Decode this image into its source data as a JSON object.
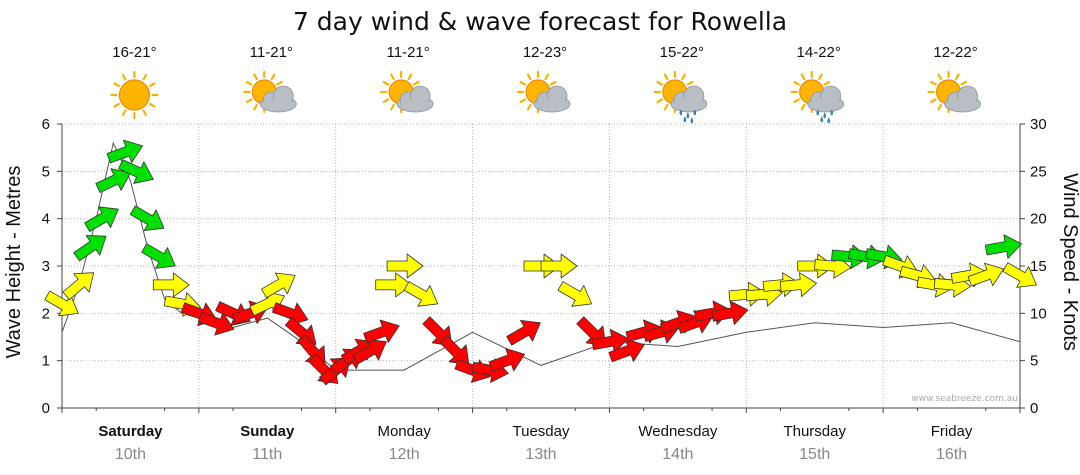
{
  "chart_data": {
    "type": "line",
    "title": "7 day wind & wave forecast for Rowella",
    "ylabel_left": "Wave Height - Metres",
    "ylabel_right": "Wind Speed - Knots",
    "ylim_left": [
      0,
      6
    ],
    "ylim_right": [
      0,
      30
    ],
    "yticks_left": [
      "0",
      "1",
      "2",
      "3",
      "4",
      "5",
      "6"
    ],
    "yticks_right": [
      "0",
      "5",
      "10",
      "15",
      "20",
      "25",
      "30"
    ],
    "grid": true,
    "watermark": "www.seabreeze.com.au",
    "days": [
      {
        "name": "Saturday",
        "date": "10th",
        "bold": true,
        "temp": "16-21°",
        "icon": "sun-icon"
      },
      {
        "name": "Sunday",
        "date": "11th",
        "bold": true,
        "temp": "11-21°",
        "icon": "partly-cloudy-icon"
      },
      {
        "name": "Monday",
        "date": "12th",
        "bold": false,
        "temp": "11-21°",
        "icon": "partly-cloudy-icon"
      },
      {
        "name": "Tuesday",
        "date": "13th",
        "bold": false,
        "temp": "12-23°",
        "icon": "partly-cloudy-icon"
      },
      {
        "name": "Wednesday",
        "date": "14th",
        "bold": false,
        "temp": "15-22°",
        "icon": "rain-cloud-icon"
      },
      {
        "name": "Thursday",
        "date": "15th",
        "bold": false,
        "temp": "14-22°",
        "icon": "rain-cloud-icon"
      },
      {
        "name": "Friday",
        "date": "16th",
        "bold": false,
        "temp": "12-22°",
        "icon": "partly-cloudy-icon"
      }
    ],
    "series": [
      {
        "name": "Wave Height",
        "x_hours": [
          0,
          3,
          6,
          9,
          12,
          15,
          18,
          21,
          24,
          30,
          36,
          42,
          48,
          60,
          72,
          84,
          96,
          108,
          120,
          132,
          144,
          156,
          168
        ],
        "values": [
          1.6,
          2.6,
          4.0,
          5.6,
          4.8,
          3.4,
          2.3,
          2.0,
          1.9,
          1.7,
          1.9,
          1.4,
          0.8,
          0.8,
          1.6,
          0.9,
          1.4,
          1.3,
          1.6,
          1.8,
          1.7,
          1.8,
          1.4
        ]
      }
    ],
    "wind": {
      "x_hours": [
        0,
        3,
        5,
        7,
        9,
        11,
        13,
        15,
        17,
        19,
        21,
        24,
        27,
        30,
        33,
        36,
        38,
        40,
        42,
        44,
        46,
        48,
        50,
        52,
        54,
        56,
        58,
        60,
        63,
        66,
        69,
        72,
        75,
        78,
        81,
        84,
        87,
        90,
        93,
        96,
        99,
        102,
        105,
        108,
        111,
        114,
        117,
        120,
        123,
        126,
        129,
        132,
        135,
        138,
        141,
        144,
        147,
        150,
        153,
        156,
        159,
        162,
        165,
        168
      ],
      "knots": [
        11,
        13,
        17,
        20,
        24,
        27,
        25,
        20,
        16,
        13,
        11,
        10,
        9,
        10,
        10,
        11,
        13,
        10,
        8,
        6,
        4,
        4,
        5,
        6,
        6,
        8,
        13,
        15,
        12,
        8,
        6,
        4,
        4,
        5,
        8,
        15,
        15,
        12,
        8,
        7,
        6,
        8,
        8,
        9,
        9,
        10,
        10,
        12,
        12,
        13,
        13,
        15,
        15,
        16,
        16,
        16,
        15,
        14,
        13,
        13,
        14,
        14,
        17,
        14
      ],
      "direction_to_deg": [
        30,
        -40,
        -35,
        -30,
        -25,
        -20,
        25,
        30,
        30,
        0,
        10,
        20,
        20,
        25,
        -20,
        -25,
        -30,
        20,
        40,
        50,
        45,
        -40,
        -35,
        -30,
        -30,
        -20,
        0,
        0,
        30,
        45,
        45,
        20,
        10,
        -20,
        -30,
        0,
        0,
        30,
        45,
        -10,
        -20,
        -15,
        -15,
        -20,
        -20,
        -10,
        -10,
        -5,
        -5,
        -5,
        -5,
        0,
        5,
        5,
        10,
        10,
        20,
        15,
        10,
        5,
        -10,
        -20,
        -10,
        30
      ],
      "color_scale": [
        {
          "max_knots": 10,
          "color": "#ff0000"
        },
        {
          "max_knots": 15,
          "color": "#ffff00"
        },
        {
          "max_knots": 40,
          "color": "#00e000"
        }
      ]
    }
  }
}
